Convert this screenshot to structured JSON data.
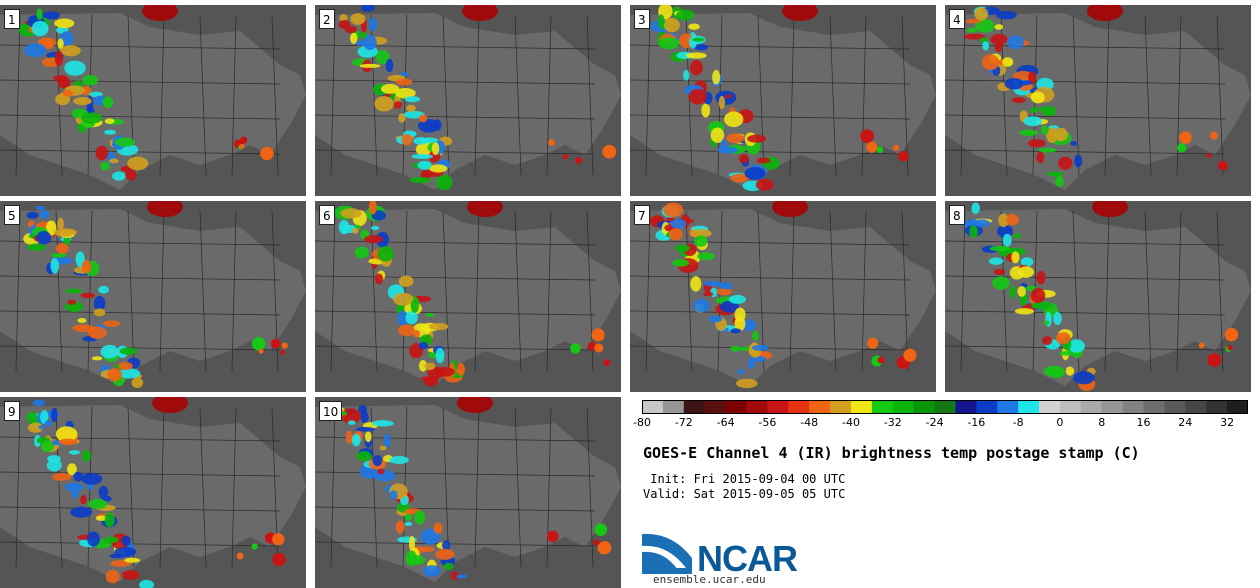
{
  "panels": [
    "1",
    "2",
    "3",
    "4",
    "5",
    "6",
    "7",
    "8",
    "9",
    "10"
  ],
  "colorbar": {
    "tick_labels": [
      "-80",
      "-72",
      "-64",
      "-56",
      "-48",
      "-40",
      "-32",
      "-24",
      "-16",
      "-8",
      "0",
      "8",
      "16",
      "24",
      "32"
    ],
    "colors": [
      "#c8c8c8",
      "#969696",
      "#3c1414",
      "#5a0f0f",
      "#7d0000",
      "#a00a0a",
      "#c81414",
      "#e63214",
      "#f06414",
      "#d2a01e",
      "#f0e614",
      "#14c814",
      "#0ab40a",
      "#0a960a",
      "#147814",
      "#14148c",
      "#0a3cc8",
      "#1e78e6",
      "#1ee6e6",
      "#d2d2d2",
      "#bebebe",
      "#aaaaaa",
      "#969696",
      "#828282",
      "#6e6e6e",
      "#5a5a5a",
      "#464646",
      "#323232",
      "#1e1e1e"
    ]
  },
  "title": "GOES-E Channel 4 (IR) brightness temp postage stamp (C)",
  "init": " Init: Fri 2015-09-04 00 UTC",
  "valid": "Valid: Sat 2015-09-05 05 UTC",
  "logo": {
    "text": "NCAR",
    "site": "ensemble.ucar.edu"
  }
}
